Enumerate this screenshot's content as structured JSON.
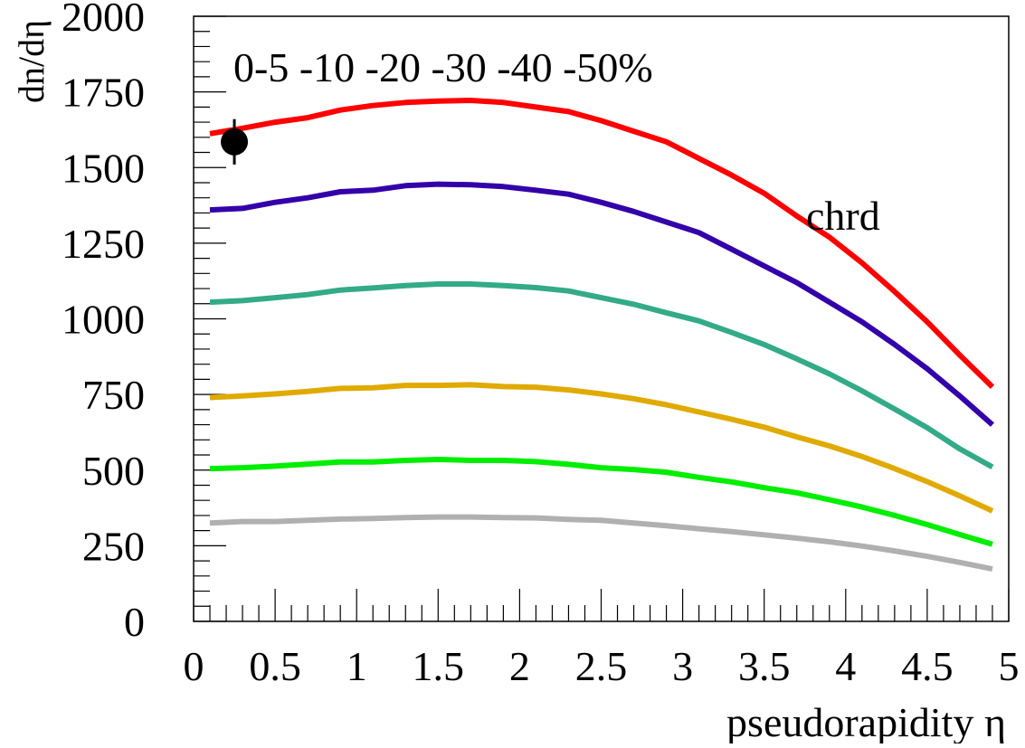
{
  "chart_data": {
    "type": "line",
    "title": "",
    "xlabel": "pseudorapidity η",
    "ylabel": "dn/dη",
    "xlim": [
      0,
      5
    ],
    "ylim": [
      0,
      2000
    ],
    "x_ticks": [
      "0",
      "0.5",
      "1",
      "1.5",
      "2",
      "2.5",
      "3",
      "3.5",
      "4",
      "4.5",
      "5"
    ],
    "y_ticks": [
      "0",
      "250",
      "500",
      "750",
      "1000",
      "1250",
      "1500",
      "1750",
      "2000"
    ],
    "grid": false,
    "legend_text": "0-5 -10 -20 -30 -40 -50%",
    "annotation": "chrd",
    "x": [
      0.1,
      0.3,
      0.5,
      0.7,
      0.9,
      1.1,
      1.3,
      1.5,
      1.7,
      1.9,
      2.1,
      2.3,
      2.5,
      2.7,
      2.9,
      3.1,
      3.3,
      3.5,
      3.7,
      3.9,
      4.1,
      4.3,
      4.5,
      4.7,
      4.9
    ],
    "series": [
      {
        "color": "#ff0000",
        "values": [
          1612,
          1630,
          1650,
          1665,
          1690,
          1705,
          1715,
          1720,
          1722,
          1715,
          1700,
          1685,
          1655,
          1620,
          1585,
          1530,
          1475,
          1415,
          1340,
          1270,
          1185,
          1090,
          990,
          880,
          775
        ]
      },
      {
        "color": "#3300aa",
        "values": [
          1360,
          1365,
          1385,
          1400,
          1420,
          1425,
          1440,
          1445,
          1443,
          1437,
          1425,
          1412,
          1385,
          1355,
          1320,
          1285,
          1230,
          1175,
          1120,
          1055,
          990,
          915,
          835,
          745,
          650
        ]
      },
      {
        "color": "#33aa88",
        "values": [
          1055,
          1060,
          1070,
          1080,
          1095,
          1102,
          1110,
          1115,
          1115,
          1110,
          1103,
          1092,
          1070,
          1048,
          1020,
          993,
          955,
          915,
          868,
          818,
          762,
          702,
          640,
          570,
          510
        ]
      },
      {
        "color": "#e0aa00",
        "values": [
          740,
          745,
          752,
          760,
          770,
          772,
          780,
          780,
          782,
          776,
          774,
          765,
          752,
          736,
          716,
          692,
          668,
          642,
          610,
          580,
          545,
          505,
          462,
          415,
          365
        ]
      },
      {
        "color": "#00ee00",
        "values": [
          505,
          508,
          513,
          520,
          527,
          527,
          532,
          535,
          532,
          532,
          528,
          519,
          508,
          502,
          493,
          476,
          461,
          442,
          425,
          402,
          378,
          350,
          320,
          287,
          255
        ]
      },
      {
        "color": "#b0b0b0",
        "values": [
          325,
          330,
          330,
          334,
          338,
          340,
          343,
          345,
          345,
          343,
          342,
          337,
          334,
          325,
          316,
          306,
          297,
          286,
          275,
          263,
          249,
          233,
          215,
          195,
          173
        ]
      }
    ],
    "data_point": {
      "x": 0.25,
      "y": 1585,
      "err": 75,
      "color": "#000000"
    }
  }
}
